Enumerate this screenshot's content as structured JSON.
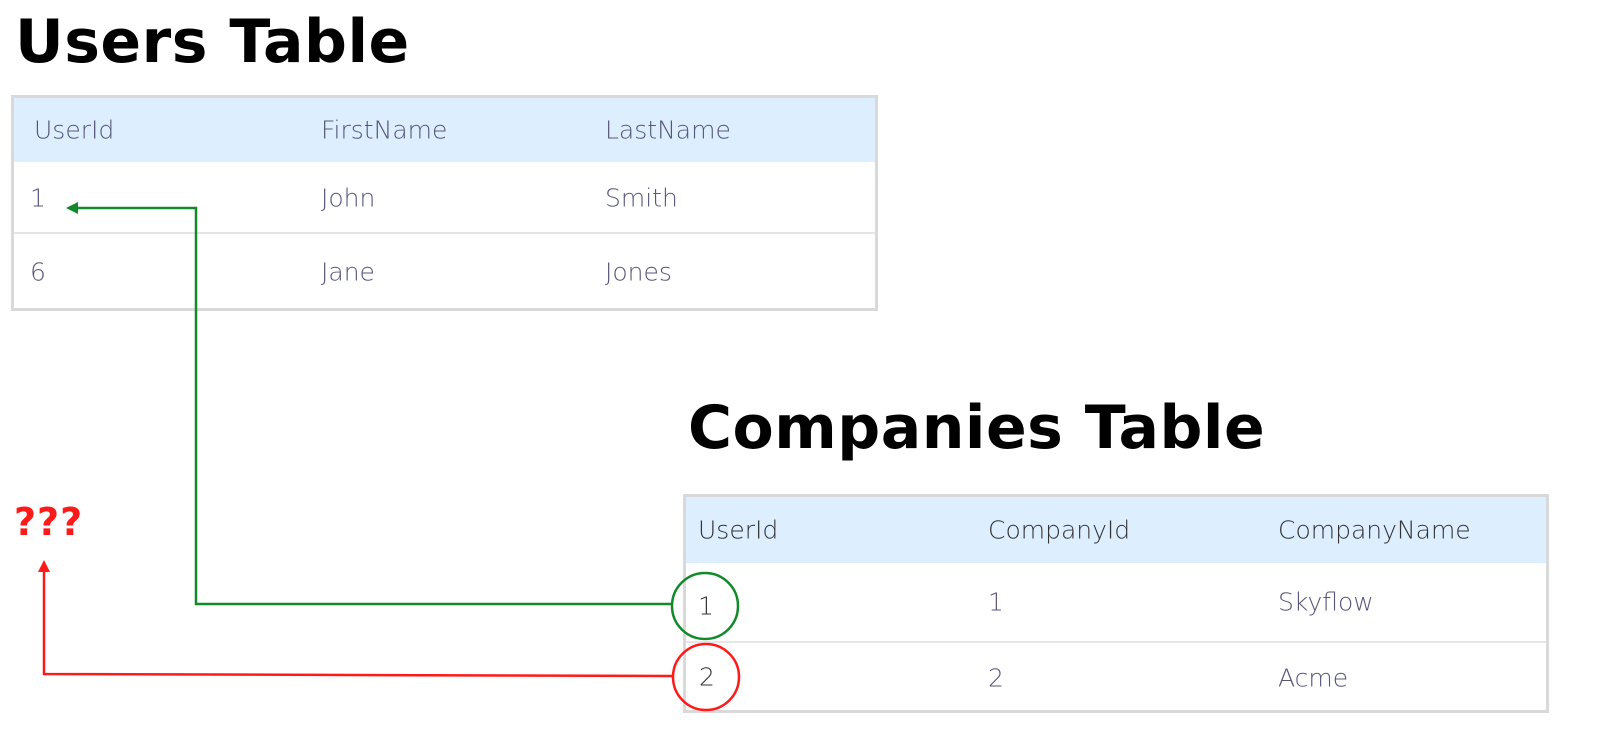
{
  "users_table": {
    "title": "Users Table",
    "headers": [
      "UserId",
      "FirstName",
      "LastName"
    ],
    "rows": [
      [
        "1",
        "John",
        "Smith"
      ],
      [
        "6",
        "Jane",
        "Jones"
      ]
    ]
  },
  "companies_table": {
    "title": "Companies Table",
    "headers": [
      "UserId",
      "CompanyId",
      "CompanyName"
    ],
    "rows": [
      [
        "1",
        "1",
        "Skyflow"
      ],
      [
        "2",
        "2",
        "Acme"
      ]
    ]
  },
  "annotations": {
    "unknown_label": "???",
    "valid_link_color": "#128a2a",
    "broken_link_color": "#ff1a1a"
  }
}
